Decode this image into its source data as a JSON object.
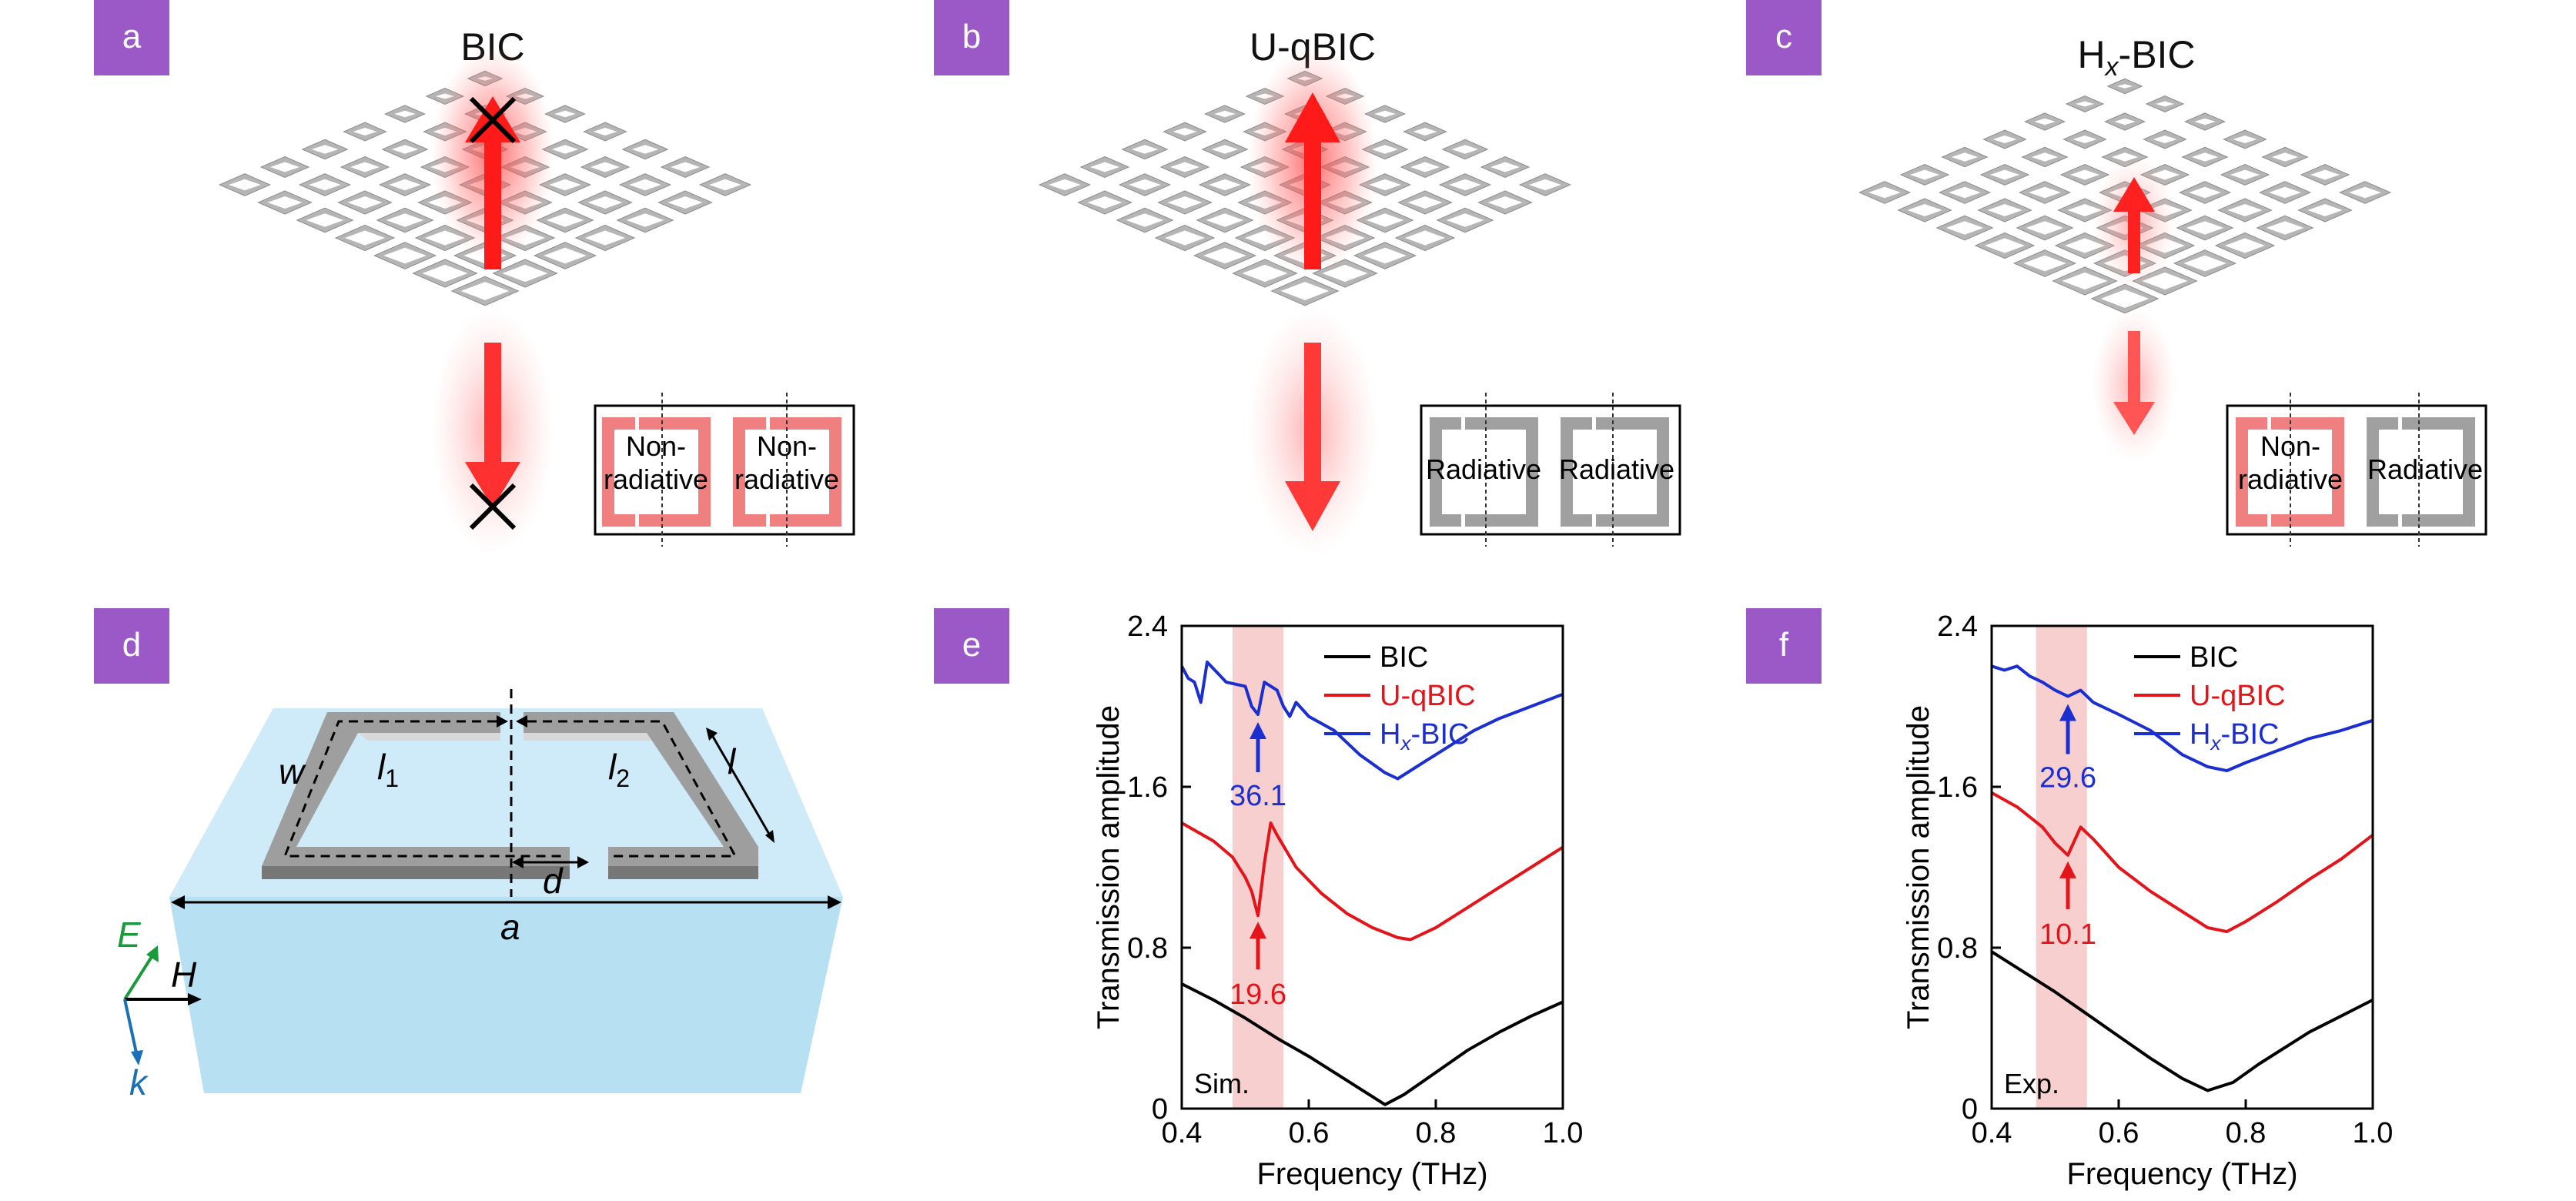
{
  "panels": {
    "a": {
      "label": "a",
      "title": "BIC",
      "inset": [
        "Non-\nradiative",
        "Non-\nradiative"
      ]
    },
    "b": {
      "label": "b",
      "title": "U-qBIC",
      "inset": [
        "Radiative",
        "Radiative"
      ]
    },
    "c": {
      "label": "c",
      "title_main": "H",
      "title_sub": "x",
      "title_rest": "-BIC",
      "inset": [
        "Non-\nradiative",
        "Radiative"
      ]
    },
    "d": {
      "label": "d",
      "symbols": {
        "w": "w",
        "l1": "l",
        "l1_sub": "1",
        "l2": "l",
        "l2_sub": "2",
        "l": "l",
        "d": "d",
        "a": "a",
        "E": "E",
        "H": "H",
        "k": "k"
      }
    },
    "e": {
      "label": "e",
      "corner_text": "Sim.",
      "ann_blue": "36.1",
      "ann_red": "19.6"
    },
    "f": {
      "label": "f",
      "corner_text": "Exp.",
      "ann_blue": "29.6",
      "ann_red": "10.1"
    }
  },
  "colors": {
    "badge": "#9b59c8",
    "bic": "#000000",
    "uqbic": "#e3151a",
    "hxbic": "#1b2fd0",
    "band": "#f8cfcf",
    "substrate": "#bde3f5",
    "frame_red": "#f07f7f",
    "frame_grey": "#a0a0a0",
    "E_arrow": "#1a9a3c",
    "k_arrow": "#1a6fb5"
  },
  "chart_data": [
    {
      "panel": "e",
      "type": "line",
      "xlabel": "Frequency (THz)",
      "ylabel": "Transmission amplitude",
      "xlim": [
        0.4,
        1.0
      ],
      "ylim": [
        0,
        2.4
      ],
      "xticks": [
        "0.4",
        "0.6",
        "0.8",
        "1.0"
      ],
      "yticks": [
        "0",
        "0.8",
        "1.6",
        "2.4"
      ],
      "shaded_band": [
        0.48,
        0.56
      ],
      "legend": {
        "placement": "top-right",
        "entries": [
          "BIC",
          "U-qBIC",
          "H_x-BIC"
        ]
      },
      "series": [
        {
          "name": "BIC",
          "color": "#000000",
          "x": [
            0.4,
            0.45,
            0.5,
            0.55,
            0.6,
            0.65,
            0.7,
            0.72,
            0.75,
            0.8,
            0.85,
            0.9,
            0.95,
            1.0
          ],
          "y": [
            0.62,
            0.54,
            0.45,
            0.35,
            0.26,
            0.16,
            0.06,
            0.02,
            0.07,
            0.18,
            0.29,
            0.38,
            0.46,
            0.53
          ]
        },
        {
          "name": "U-qBIC",
          "color": "#e3151a",
          "x": [
            0.4,
            0.45,
            0.48,
            0.5,
            0.51,
            0.52,
            0.53,
            0.54,
            0.55,
            0.58,
            0.62,
            0.66,
            0.7,
            0.74,
            0.76,
            0.8,
            0.85,
            0.9,
            0.95,
            1.0
          ],
          "y": [
            1.42,
            1.33,
            1.25,
            1.15,
            1.08,
            0.96,
            1.22,
            1.42,
            1.36,
            1.2,
            1.07,
            0.97,
            0.9,
            0.85,
            0.84,
            0.9,
            1.0,
            1.1,
            1.2,
            1.3
          ]
        },
        {
          "name": "H_x-BIC",
          "color": "#1b2fd0",
          "x": [
            0.4,
            0.41,
            0.42,
            0.43,
            0.44,
            0.47,
            0.5,
            0.51,
            0.52,
            0.53,
            0.55,
            0.56,
            0.57,
            0.58,
            0.6,
            0.64,
            0.68,
            0.72,
            0.74,
            0.78,
            0.82,
            0.86,
            0.9,
            0.95,
            1.0
          ],
          "y": [
            2.2,
            2.14,
            2.12,
            2.02,
            2.22,
            2.12,
            2.1,
            2.0,
            1.96,
            2.12,
            2.08,
            2.0,
            1.95,
            2.02,
            1.95,
            1.88,
            1.76,
            1.67,
            1.64,
            1.72,
            1.8,
            1.88,
            1.94,
            2.0,
            2.06
          ]
        }
      ],
      "annotations": [
        {
          "text": "36.1",
          "x": 0.52,
          "color": "#1b2fd0"
        },
        {
          "text": "19.6",
          "x": 0.52,
          "color": "#e3151a"
        }
      ]
    },
    {
      "panel": "f",
      "type": "line",
      "xlabel": "Frequency (THz)",
      "ylabel": "Transmission amplitude",
      "xlim": [
        0.4,
        1.0
      ],
      "ylim": [
        0,
        2.4
      ],
      "xticks": [
        "0.4",
        "0.6",
        "0.8",
        "1.0"
      ],
      "yticks": [
        "0",
        "0.8",
        "1.6",
        "2.4"
      ],
      "shaded_band": [
        0.47,
        0.55
      ],
      "legend": {
        "placement": "top-right",
        "entries": [
          "BIC",
          "U-qBIC",
          "H_x-BIC"
        ]
      },
      "series": [
        {
          "name": "BIC",
          "color": "#000000",
          "x": [
            0.4,
            0.45,
            0.5,
            0.55,
            0.6,
            0.65,
            0.7,
            0.74,
            0.78,
            0.82,
            0.86,
            0.9,
            0.95,
            1.0
          ],
          "y": [
            0.78,
            0.68,
            0.58,
            0.47,
            0.36,
            0.25,
            0.15,
            0.09,
            0.13,
            0.22,
            0.3,
            0.38,
            0.46,
            0.54
          ]
        },
        {
          "name": "U-qBIC",
          "color": "#e3151a",
          "x": [
            0.4,
            0.44,
            0.48,
            0.5,
            0.52,
            0.54,
            0.56,
            0.6,
            0.65,
            0.7,
            0.74,
            0.77,
            0.8,
            0.85,
            0.9,
            0.95,
            1.0
          ],
          "y": [
            1.57,
            1.5,
            1.4,
            1.32,
            1.26,
            1.4,
            1.34,
            1.2,
            1.08,
            0.98,
            0.9,
            0.88,
            0.93,
            1.03,
            1.14,
            1.24,
            1.36
          ]
        },
        {
          "name": "H_x-BIC",
          "color": "#1b2fd0",
          "x": [
            0.4,
            0.42,
            0.44,
            0.46,
            0.48,
            0.5,
            0.52,
            0.54,
            0.56,
            0.6,
            0.65,
            0.7,
            0.74,
            0.77,
            0.8,
            0.85,
            0.9,
            0.95,
            1.0
          ],
          "y": [
            2.2,
            2.18,
            2.2,
            2.15,
            2.12,
            2.08,
            2.05,
            2.08,
            2.02,
            1.96,
            1.88,
            1.76,
            1.7,
            1.68,
            1.72,
            1.78,
            1.84,
            1.88,
            1.93
          ]
        }
      ],
      "annotations": [
        {
          "text": "29.6",
          "x": 0.52,
          "color": "#1b2fd0"
        },
        {
          "text": "10.1",
          "x": 0.52,
          "color": "#e3151a"
        }
      ]
    }
  ]
}
